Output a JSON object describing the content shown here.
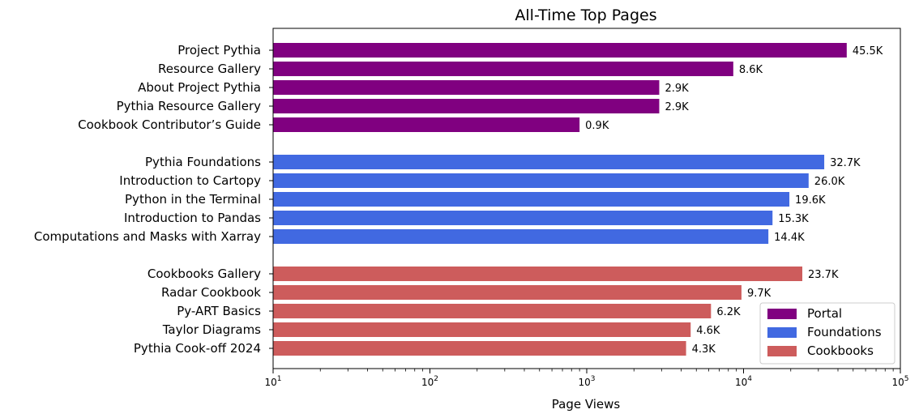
{
  "chart_data": {
    "type": "bar",
    "orientation": "horizontal",
    "title": "All-Time Top Pages",
    "xlabel": "Page Views",
    "ylabel": "",
    "xscale": "log",
    "xlim": [
      10,
      100000
    ],
    "x_ticks": [
      {
        "value": 10,
        "base": "10",
        "exp": "1"
      },
      {
        "value": 100,
        "base": "10",
        "exp": "2"
      },
      {
        "value": 1000,
        "base": "10",
        "exp": "3"
      },
      {
        "value": 10000,
        "base": "10",
        "exp": "4"
      },
      {
        "value": 100000,
        "base": "10",
        "exp": "5"
      }
    ],
    "grid": false,
    "legend_position": "bottom-right",
    "groups": [
      {
        "name": "Portal",
        "color": "#800080",
        "items": [
          {
            "label": "Project Pythia",
            "value": 45500,
            "display": "45.5K"
          },
          {
            "label": "Resource Gallery",
            "value": 8600,
            "display": "8.6K"
          },
          {
            "label": "About Project Pythia",
            "value": 2900,
            "display": "2.9K"
          },
          {
            "label": "Pythia Resource Gallery",
            "value": 2900,
            "display": "2.9K"
          },
          {
            "label": "Cookbook Contributor’s Guide",
            "value": 900,
            "display": "0.9K"
          }
        ]
      },
      {
        "name": "Foundations",
        "color": "#4169E1",
        "items": [
          {
            "label": "Pythia Foundations",
            "value": 32700,
            "display": "32.7K"
          },
          {
            "label": "Introduction to Cartopy",
            "value": 26000,
            "display": "26.0K"
          },
          {
            "label": "Python in the Terminal",
            "value": 19600,
            "display": "19.6K"
          },
          {
            "label": "Introduction to Pandas",
            "value": 15300,
            "display": "15.3K"
          },
          {
            "label": "Computations and Masks with Xarray",
            "value": 14400,
            "display": "14.4K"
          }
        ]
      },
      {
        "name": "Cookbooks",
        "color": "#CD5C5C",
        "items": [
          {
            "label": "Cookbooks Gallery",
            "value": 23700,
            "display": "23.7K"
          },
          {
            "label": "Radar Cookbook",
            "value": 9700,
            "display": "9.7K"
          },
          {
            "label": "Py-ART Basics",
            "value": 6200,
            "display": "6.2K"
          },
          {
            "label": "Taylor Diagrams",
            "value": 4600,
            "display": "4.6K"
          },
          {
            "label": "Pythia Cook-off 2024",
            "value": 4300,
            "display": "4.3K"
          }
        ]
      }
    ]
  }
}
